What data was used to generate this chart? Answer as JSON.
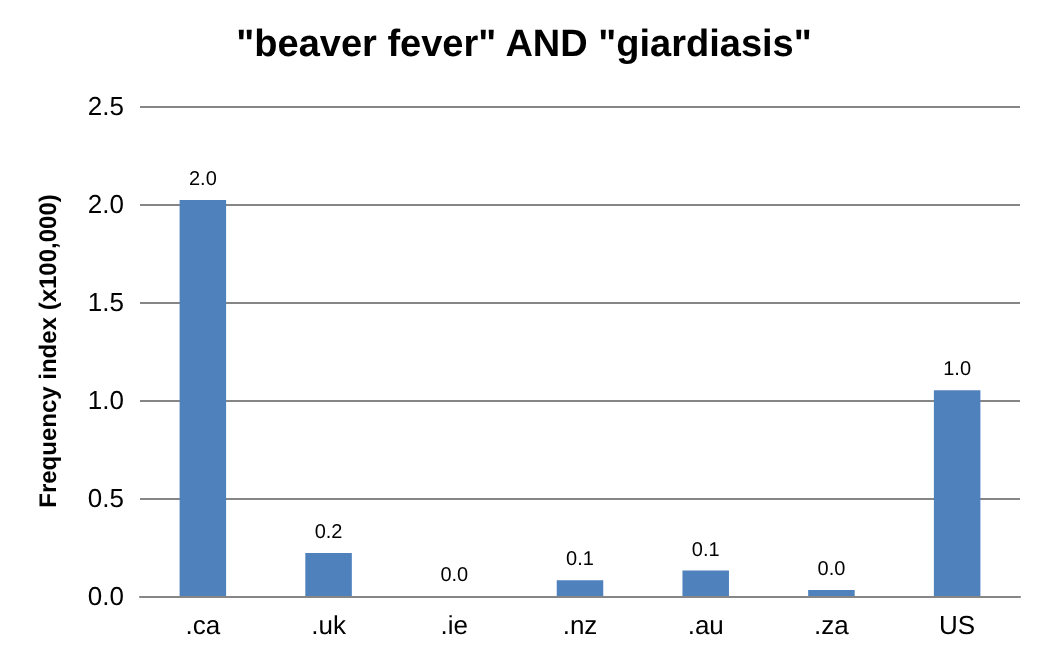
{
  "chart_data": {
    "type": "bar",
    "title": "\"beaver fever\" AND \"giardiasis\"",
    "ylabel": "Frequency index (x100,000)",
    "categories": [
      ".ca",
      ".uk",
      ".ie",
      ".nz",
      ".au",
      ".za",
      "US"
    ],
    "values": [
      2.02,
      0.22,
      0.0,
      0.08,
      0.13,
      0.03,
      1.05
    ],
    "value_labels": [
      "2.0",
      "0.2",
      "0.0",
      "0.1",
      "0.1",
      "0.0",
      "1.0"
    ],
    "color": "#4f81bd",
    "ylim": [
      0,
      2.5
    ],
    "yticks": [
      {
        "value": 0,
        "label": "0.0"
      },
      0.5,
      {
        "value": 1,
        "label": "1.0"
      },
      1.5,
      {
        "value": 2,
        "label": "2.0"
      },
      2.5
    ],
    "grid": "y"
  }
}
